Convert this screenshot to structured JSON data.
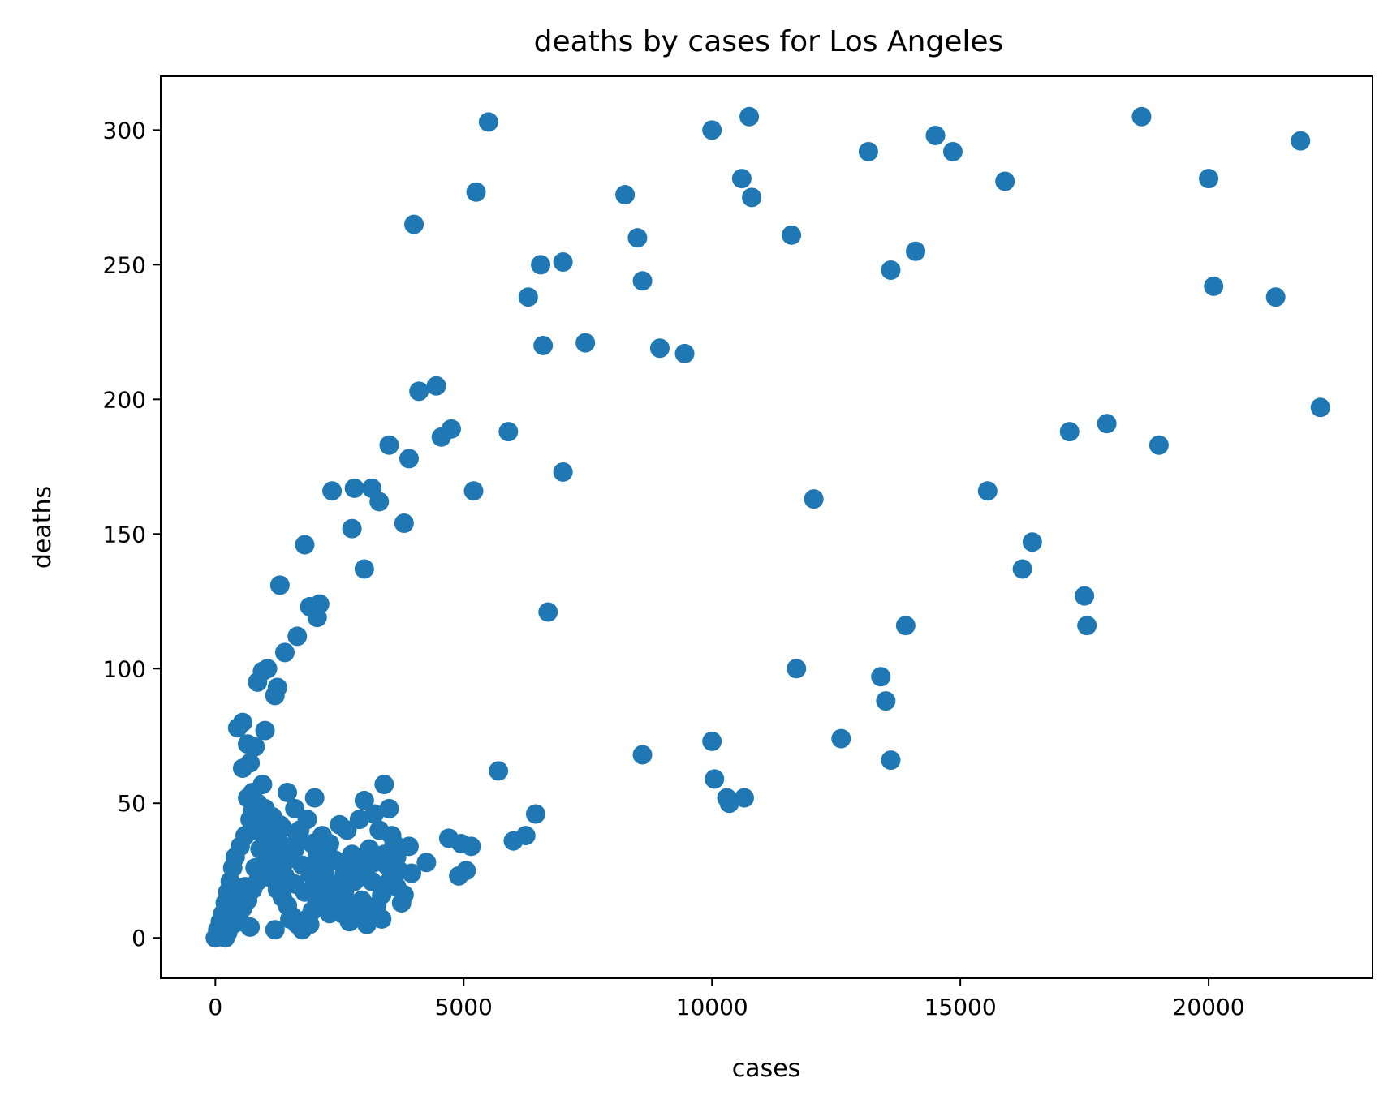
{
  "chart_data": {
    "type": "scatter",
    "title": "deaths by cases for Los Angeles",
    "xlabel": "cases",
    "ylabel": "deaths",
    "xlim": [
      -1100,
      23300
    ],
    "ylim": [
      -15,
      320
    ],
    "xticks": [
      0,
      5000,
      10000,
      15000,
      20000
    ],
    "yticks": [
      0,
      50,
      100,
      150,
      200,
      250,
      300
    ],
    "marker_color": "#1f77b4",
    "grid": false,
    "legend": "none",
    "points": [
      [
        5500,
        303
      ],
      [
        10000,
        300
      ],
      [
        10750,
        305
      ],
      [
        13150,
        292
      ],
      [
        14500,
        298
      ],
      [
        14850,
        292
      ],
      [
        18650,
        305
      ],
      [
        21850,
        296
      ],
      [
        20000,
        282
      ],
      [
        15900,
        281
      ],
      [
        10600,
        282
      ],
      [
        10800,
        275
      ],
      [
        5250,
        277
      ],
      [
        8250,
        276
      ],
      [
        4000,
        265
      ],
      [
        8500,
        260
      ],
      [
        11600,
        261
      ],
      [
        14100,
        255
      ],
      [
        13600,
        248
      ],
      [
        6550,
        250
      ],
      [
        7000,
        251
      ],
      [
        8600,
        244
      ],
      [
        6300,
        238
      ],
      [
        20100,
        242
      ],
      [
        21350,
        238
      ],
      [
        6600,
        220
      ],
      [
        7450,
        221
      ],
      [
        8950,
        219
      ],
      [
        9450,
        217
      ],
      [
        4100,
        203
      ],
      [
        4450,
        205
      ],
      [
        4550,
        186
      ],
      [
        4750,
        189
      ],
      [
        5900,
        188
      ],
      [
        17200,
        188
      ],
      [
        17950,
        191
      ],
      [
        19000,
        183
      ],
      [
        22250,
        197
      ],
      [
        3500,
        183
      ],
      [
        3900,
        178
      ],
      [
        7000,
        173
      ],
      [
        2350,
        166
      ],
      [
        2800,
        167
      ],
      [
        3150,
        167
      ],
      [
        3300,
        162
      ],
      [
        5200,
        166
      ],
      [
        12050,
        163
      ],
      [
        15550,
        166
      ],
      [
        2750,
        152
      ],
      [
        3800,
        154
      ],
      [
        1800,
        146
      ],
      [
        16450,
        147
      ],
      [
        16250,
        137
      ],
      [
        3000,
        137
      ],
      [
        1300,
        131
      ],
      [
        6700,
        121
      ],
      [
        17500,
        127
      ],
      [
        17550,
        116
      ],
      [
        1900,
        123
      ],
      [
        2100,
        124
      ],
      [
        2050,
        119
      ],
      [
        13900,
        116
      ],
      [
        1650,
        112
      ],
      [
        1400,
        106
      ],
      [
        11700,
        100
      ],
      [
        13400,
        97
      ],
      [
        13500,
        88
      ],
      [
        13600,
        66
      ],
      [
        12600,
        74
      ],
      [
        850,
        95
      ],
      [
        950,
        99
      ],
      [
        1050,
        100
      ],
      [
        1250,
        93
      ],
      [
        1200,
        90
      ],
      [
        1000,
        77
      ],
      [
        550,
        80
      ],
      [
        450,
        78
      ],
      [
        650,
        72
      ],
      [
        800,
        71
      ],
      [
        10000,
        73
      ],
      [
        8600,
        68
      ],
      [
        5700,
        62
      ],
      [
        10050,
        59
      ],
      [
        10300,
        52
      ],
      [
        10350,
        50
      ],
      [
        10650,
        52
      ],
      [
        6450,
        46
      ],
      [
        6000,
        36
      ],
      [
        6250,
        38
      ],
      [
        4700,
        37
      ],
      [
        4950,
        35
      ],
      [
        5150,
        34
      ],
      [
        4900,
        23
      ],
      [
        5050,
        25
      ],
      [
        4250,
        28
      ],
      [
        3900,
        34
      ],
      [
        3950,
        24
      ],
      [
        3400,
        57
      ],
      [
        3500,
        48
      ],
      [
        3350,
        7
      ],
      [
        3750,
        13
      ],
      [
        3800,
        16
      ],
      [
        550,
        63
      ],
      [
        700,
        65
      ],
      [
        750,
        54
      ],
      [
        850,
        50
      ],
      [
        950,
        57
      ],
      [
        1000,
        48
      ],
      [
        1150,
        45
      ],
      [
        1300,
        42
      ],
      [
        1450,
        54
      ],
      [
        1600,
        48
      ],
      [
        1700,
        40
      ],
      [
        1850,
        44
      ],
      [
        2000,
        52
      ],
      [
        2150,
        38
      ],
      [
        2300,
        35
      ],
      [
        2500,
        42
      ],
      [
        2650,
        40
      ],
      [
        2900,
        44
      ],
      [
        3000,
        51
      ],
      [
        3200,
        46
      ],
      [
        3300,
        40
      ],
      [
        3550,
        38
      ],
      [
        3650,
        30
      ],
      [
        3450,
        27
      ],
      [
        3100,
        33
      ],
      [
        2950,
        28
      ],
      [
        2750,
        31
      ],
      [
        2600,
        24
      ],
      [
        2400,
        29
      ],
      [
        2200,
        27
      ],
      [
        2050,
        30
      ],
      [
        1900,
        24
      ],
      [
        1750,
        27
      ],
      [
        1600,
        33
      ],
      [
        1450,
        29
      ],
      [
        1300,
        35
      ],
      [
        1150,
        31
      ],
      [
        1000,
        37
      ],
      [
        900,
        33
      ],
      [
        800,
        40
      ],
      [
        700,
        44
      ],
      [
        600,
        38
      ],
      [
        500,
        34
      ],
      [
        400,
        30
      ],
      [
        350,
        26
      ],
      [
        300,
        21
      ],
      [
        250,
        17
      ],
      [
        200,
        13
      ],
      [
        150,
        9
      ],
      [
        100,
        6
      ],
      [
        50,
        3
      ],
      [
        0,
        0
      ],
      [
        100,
        1
      ],
      [
        200,
        0
      ],
      [
        250,
        2
      ],
      [
        350,
        5
      ],
      [
        450,
        8
      ],
      [
        550,
        11
      ],
      [
        650,
        14
      ],
      [
        750,
        18
      ],
      [
        850,
        21
      ],
      [
        950,
        24
      ],
      [
        1050,
        27
      ],
      [
        1150,
        22
      ],
      [
        1250,
        18
      ],
      [
        1350,
        15
      ],
      [
        1450,
        12
      ],
      [
        1550,
        8
      ],
      [
        1650,
        5
      ],
      [
        1750,
        3
      ],
      [
        1850,
        7
      ],
      [
        1950,
        10
      ],
      [
        2050,
        13
      ],
      [
        2150,
        16
      ],
      [
        2250,
        19
      ],
      [
        2350,
        14
      ],
      [
        2450,
        11
      ],
      [
        2550,
        9
      ],
      [
        2650,
        12
      ],
      [
        2750,
        7
      ],
      [
        2850,
        10
      ],
      [
        2950,
        14
      ],
      [
        3050,
        5
      ],
      [
        3150,
        9
      ],
      [
        3250,
        12
      ],
      [
        3350,
        16
      ],
      [
        3450,
        20
      ],
      [
        3550,
        23
      ],
      [
        3650,
        19
      ],
      [
        3150,
        21
      ],
      [
        2850,
        25
      ],
      [
        2550,
        28
      ],
      [
        2250,
        32
      ],
      [
        1950,
        35
      ],
      [
        1650,
        38
      ],
      [
        1350,
        41
      ],
      [
        1050,
        44
      ],
      [
        750,
        47
      ],
      [
        650,
        52
      ],
      [
        900,
        42
      ],
      [
        1100,
        39
      ],
      [
        1200,
        3
      ],
      [
        700,
        4
      ],
      [
        500,
        6
      ],
      [
        300,
        9
      ],
      [
        400,
        14
      ],
      [
        600,
        19
      ],
      [
        800,
        26
      ],
      [
        1000,
        30
      ],
      [
        1200,
        26
      ],
      [
        1400,
        23
      ],
      [
        1600,
        20
      ],
      [
        1800,
        17
      ],
      [
        2000,
        21
      ],
      [
        2200,
        24
      ],
      [
        2400,
        20
      ],
      [
        2600,
        17
      ],
      [
        2800,
        21
      ],
      [
        3000,
        24
      ],
      [
        3200,
        28
      ],
      [
        3400,
        31
      ],
      [
        3600,
        35
      ],
      [
        3700,
        25
      ],
      [
        1500,
        7
      ],
      [
        1900,
        5
      ],
      [
        2300,
        9
      ],
      [
        2700,
        6
      ]
    ]
  }
}
